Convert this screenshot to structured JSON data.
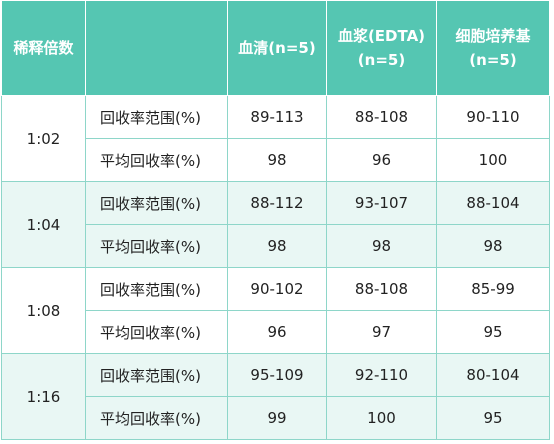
{
  "header": {
    "dilution": "稀释倍数",
    "columns": [
      [
        "血清(n=5)"
      ],
      [
        "血浆(EDTA)",
        "(n=5)"
      ],
      [
        "细胞培养基",
        "(n=5)"
      ]
    ]
  },
  "groups": [
    {
      "dilution": "1:02",
      "rows": [
        {
          "metric": "回收率范围(%)",
          "values": [
            "89-113",
            "88-108",
            "90-110"
          ]
        },
        {
          "metric": "平均回收率(%)",
          "values": [
            98,
            96,
            100
          ]
        }
      ]
    },
    {
      "dilution": "1:04",
      "rows": [
        {
          "metric": "回收率范围(%)",
          "values": [
            "88-112",
            "93-107",
            "88-104"
          ]
        },
        {
          "metric": "平均回收率(%)",
          "values": [
            98,
            98,
            98
          ]
        }
      ]
    },
    {
      "dilution": "1:08",
      "rows": [
        {
          "metric": "回收率范围(%)",
          "values": [
            "90-102",
            "88-108",
            "85-99"
          ]
        },
        {
          "metric": "平均回收率(%)",
          "values": [
            96,
            97,
            95
          ]
        }
      ]
    },
    {
      "dilution": "1:16",
      "rows": [
        {
          "metric": "回收率范围(%)",
          "values": [
            "95-109",
            "92-110",
            "80-104"
          ]
        },
        {
          "metric": "平均回收率(%)",
          "values": [
            99,
            100,
            95
          ]
        }
      ]
    }
  ]
}
